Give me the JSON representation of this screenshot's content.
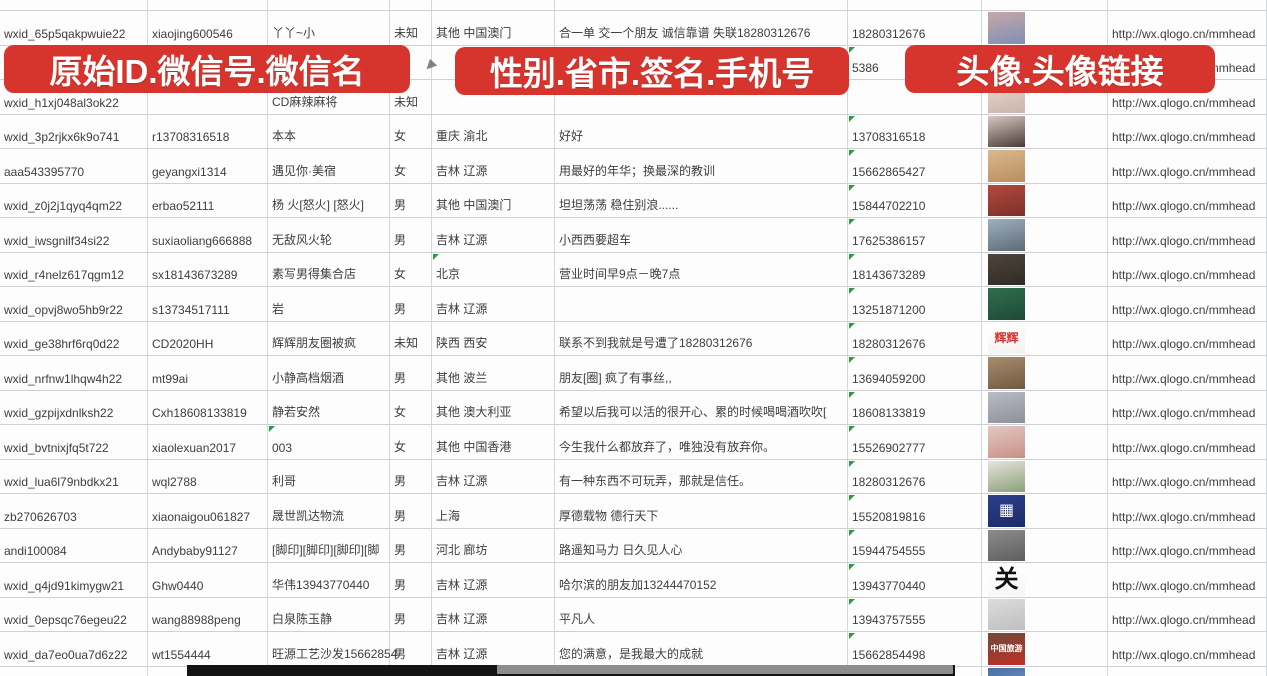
{
  "banner_color": "#d6342c",
  "flag_color": "#2f9a44",
  "banners": [
    {
      "text": "原始ID.微信号.微信名"
    },
    {
      "text": "性别.省市.签名.手机号"
    },
    {
      "text": "头像.头像链接"
    }
  ],
  "table": {
    "columns": [
      "wxid",
      "wechat_id",
      "name",
      "gender",
      "region",
      "signature",
      "phone",
      "avatar",
      "link"
    ],
    "rows": [
      {
        "wxid": "wxid_65p5qakpwuie22",
        "wechat_id": "xiaojing600546",
        "name": "丫丫~小",
        "gender": "未知",
        "region": "其他 中国澳门",
        "signature": "合一单 交一个朋友 诚信靠谱 失联18280312676",
        "phone": "18280312676",
        "link": "http://wx.qlogo.cn/mmhead",
        "phone_flag": false,
        "avatar": {
          "colors": [
            "#c9a7a8",
            "#7e8fb5"
          ]
        }
      },
      {
        "wxid": "",
        "wechat_id": "",
        "name": "",
        "gender": "",
        "region": "",
        "signature": "",
        "phone": "5386",
        "link": "http://wx.qlogo.cn/mmhead",
        "phone_flag": true,
        "avatar": {
          "colors": [
            "#5b74a8",
            "#43608f"
          ]
        }
      },
      {
        "wxid": "wxid_h1xj048al3ok22",
        "wechat_id": "",
        "name": "CD麻辣麻将",
        "gender": "未知",
        "region": "",
        "signature": "",
        "phone": "",
        "link": "http://wx.qlogo.cn/mmhead",
        "phone_flag": false,
        "avatar": {
          "colors": [
            "#e8d9d2",
            "#cbb4ab"
          ]
        }
      },
      {
        "wxid": "wxid_3p2rjkx6k9o741",
        "wechat_id": "r13708316518",
        "name": "本本",
        "gender": "女",
        "region": "重庆 渝北",
        "signature": "好好",
        "phone": "13708316518",
        "link": "http://wx.qlogo.cn/mmhead",
        "phone_flag": true,
        "avatar": {
          "colors": [
            "#d8c8c0",
            "#4a3b38"
          ]
        }
      },
      {
        "wxid": "aaa543395770",
        "wechat_id": "geyangxi1314",
        "name": "遇见你·美宿",
        "gender": "女",
        "region": "吉林 辽源",
        "signature": "用最好的年华；换最深的教训",
        "phone": "15662865427",
        "link": "http://wx.qlogo.cn/mmhead",
        "phone_flag": true,
        "avatar": {
          "colors": [
            "#d9b98c",
            "#b98d5f"
          ]
        }
      },
      {
        "wxid": "wxid_z0j2j1qyq4qm22",
        "wechat_id": "erbao52111",
        "name": "杨 火[怒火] [怒火]",
        "gender": "男",
        "region": "其他 中国澳门",
        "signature": "坦坦荡荡 稳住别浪......",
        "phone": "15844702210",
        "link": "http://wx.qlogo.cn/mmhead",
        "phone_flag": true,
        "avatar": {
          "colors": [
            "#b24a3e",
            "#7d2f28"
          ]
        }
      },
      {
        "wxid": "wxid_iwsgnilf34si22",
        "wechat_id": "suxiaoliang666888",
        "name": "无敌风火轮",
        "gender": "男",
        "region": "吉林 辽源",
        "signature": "小西西要超车",
        "phone": "17625386157",
        "link": "http://wx.qlogo.cn/mmhead",
        "phone_flag": true,
        "avatar": {
          "colors": [
            "#9fb0bd",
            "#5d6b77"
          ]
        }
      },
      {
        "wxid": "wxid_r4nelz617qgm12",
        "wechat_id": "sx18143673289",
        "name": "素写男得集合店",
        "gender": "女",
        "region": "北京",
        "signature": "营业时间早9点－晚7点",
        "phone": "18143673289",
        "link": "http://wx.qlogo.cn/mmhead",
        "phone_flag": true,
        "region_flag": true,
        "avatar": {
          "colors": [
            "#4e463c",
            "#2e2a24"
          ]
        }
      },
      {
        "wxid": "wxid_opvj8wo5hb9r22",
        "wechat_id": "s13734517111",
        "name": "岩",
        "gender": "男",
        "region": "吉林 辽源",
        "signature": "",
        "phone": "13251871200",
        "link": "http://wx.qlogo.cn/mmhead",
        "phone_flag": true,
        "avatar": {
          "colors": [
            "#2f6e4f",
            "#1f4a36"
          ]
        }
      },
      {
        "wxid": "wxid_ge38hrf6rq0d22",
        "wechat_id": "CD2020HH",
        "name": "辉辉朋友圈被疯",
        "gender": "未知",
        "region": "陕西 西安",
        "signature": "联系不到我就是号遭了18280312676",
        "phone": "18280312676",
        "link": "http://wx.qlogo.cn/mmhead",
        "phone_flag": true,
        "avatar": {
          "colors": [
            "#ffffff",
            "#f4f2f0"
          ],
          "label": "辉辉",
          "label_color": "#d6342c",
          "label_size": 12
        }
      },
      {
        "wxid": "wxid_nrfnw1lhqw4h22",
        "wechat_id": "mt99ai",
        "name": "小静高档烟酒",
        "gender": "男",
        "region": "其他 波兰",
        "signature": "朋友[圈] 疯了有事丝,,",
        "phone": "13694059200",
        "link": "http://wx.qlogo.cn/mmhead",
        "phone_flag": true,
        "avatar": {
          "colors": [
            "#a98c6d",
            "#6f5a42"
          ]
        }
      },
      {
        "wxid": "wxid_gzpijxdnlksh22",
        "wechat_id": "Cxh18608133819",
        "name": "静若安然",
        "gender": "女",
        "region": "其他 澳大利亚",
        "signature": "希望以后我可以活的很开心、累的时候喝喝酒吹吹[",
        "phone": "18608133819",
        "link": "http://wx.qlogo.cn/mmhead",
        "phone_flag": true,
        "avatar": {
          "colors": [
            "#b9bcc4",
            "#8e9199"
          ]
        }
      },
      {
        "wxid": "wxid_bvtnixjfq5t722",
        "wechat_id": "xiaolexuan2017",
        "name": "003",
        "gender": "女",
        "region": "其他 中国香港",
        "signature": "今生我什么都放弃了，唯独没有放弃你。",
        "phone": "15526902777",
        "link": "http://wx.qlogo.cn/mmhead",
        "phone_flag": true,
        "name_flag": true,
        "avatar": {
          "colors": [
            "#e3c9c2",
            "#c98f86"
          ]
        }
      },
      {
        "wxid": "wxid_lua6l79nbdkx21",
        "wechat_id": "wql2788",
        "name": "利哥",
        "gender": "男",
        "region": "吉林 辽源",
        "signature": "有一种东西不可玩弄，那就是信任。",
        "phone": "18280312676",
        "link": "http://wx.qlogo.cn/mmhead",
        "phone_flag": true,
        "avatar": {
          "colors": [
            "#e8e4da",
            "#8aa07a"
          ]
        }
      },
      {
        "wxid": "zb270626703",
        "wechat_id": "xiaonaigou061827",
        "name": "晟世凯达物流",
        "gender": "男",
        "region": "上海",
        "signature": "厚德载物 德行天下",
        "phone": "15520819816",
        "link": "http://wx.qlogo.cn/mmhead",
        "phone_flag": true,
        "avatar": {
          "colors": [
            "#2b3f8c",
            "#1d2b66"
          ],
          "label": "▦",
          "label_color": "#ffffff",
          "label_size": 16
        }
      },
      {
        "wxid": "andi100084",
        "wechat_id": "Andybaby91127",
        "name": "[脚印][脚印][脚印][脚",
        "gender": "男",
        "region": "河北 廊坊",
        "signature": "路遥知马力 日久见人心",
        "phone": "15944754555",
        "link": "http://wx.qlogo.cn/mmhead",
        "phone_flag": true,
        "avatar": {
          "colors": [
            "#8c8c8c",
            "#5e5e5e"
          ]
        }
      },
      {
        "wxid": "wxid_q4jd91kimygw21",
        "wechat_id": "Ghw0440",
        "name": "华伟13943770440",
        "gender": "男",
        "region": "吉林 辽源",
        "signature": "哈尔滨的朋友加13244470152",
        "phone": "13943770440",
        "link": "http://wx.qlogo.cn/mmhead",
        "phone_flag": true,
        "avatar": {
          "colors": [
            "#ffffff",
            "#f6f6f6"
          ],
          "label": "关",
          "label_color": "#111111",
          "label_size": 24
        }
      },
      {
        "wxid": "wxid_0epsqc76egeu22",
        "wechat_id": "wang88988peng",
        "name": "白泉陈玉静",
        "gender": "男",
        "region": "吉林 辽源",
        "signature": "平凡人",
        "phone": "13943757555",
        "link": "http://wx.qlogo.cn/mmhead",
        "phone_flag": true,
        "avatar": {
          "colors": [
            "#dcdcdc",
            "#bfbfbf"
          ]
        }
      },
      {
        "wxid": "wxid_da7eo0ua7d6z22",
        "wechat_id": "wt1554444",
        "name": "旺源工艺沙发15662854",
        "gender": "男",
        "region": "吉林 辽源",
        "signature": "您的满意，是我最大的成就",
        "phone": "15662854498",
        "link": "http://wx.qlogo.cn/mmhead",
        "phone_flag": true,
        "avatar": {
          "colors": [
            "#6e4a3a",
            "#c03028"
          ],
          "label": "中国旅游",
          "label_color": "#ffffff",
          "label_size": 8
        }
      },
      {
        "wxid": "",
        "wechat_id": "",
        "name": "",
        "gender": "",
        "region": "",
        "signature": "",
        "phone": "",
        "link": "",
        "phone_flag": true,
        "avatar": {
          "colors": [
            "#4a6fa5",
            "#7da0c8"
          ]
        }
      }
    ]
  }
}
